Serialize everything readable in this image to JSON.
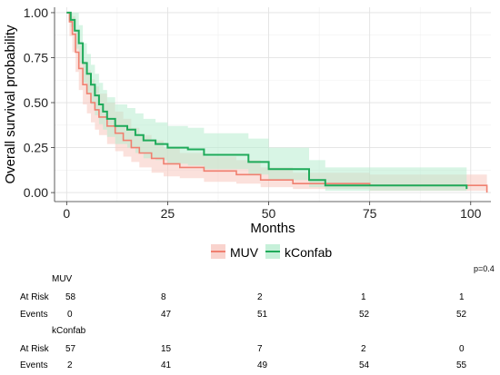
{
  "chart_data": {
    "type": "line",
    "subtype": "kaplan-meier",
    "xlabel": "Months",
    "ylabel": "Overall survival probability",
    "xlim": [
      -3,
      105
    ],
    "ylim": [
      -0.05,
      1.03
    ],
    "xticks": [
      0,
      25,
      50,
      75,
      100
    ],
    "yticks": [
      0.0,
      0.25,
      0.5,
      0.75,
      1.0
    ],
    "ytick_labels": [
      "0.00",
      "0.25",
      "0.50",
      "0.75",
      "1.00"
    ],
    "grid": true,
    "legend_position": "bottom",
    "pvalue_label": "p=0.4",
    "series": [
      {
        "name": "MUV",
        "color": "#f08070",
        "fill": "#f8c8c0",
        "steps": [
          [
            0,
            1.0
          ],
          [
            0.7,
            0.95
          ],
          [
            1.4,
            0.88
          ],
          [
            2.2,
            0.78
          ],
          [
            3,
            0.69
          ],
          [
            4,
            0.6
          ],
          [
            5,
            0.55
          ],
          [
            6,
            0.5
          ],
          [
            7,
            0.46
          ],
          [
            8,
            0.42
          ],
          [
            10,
            0.37
          ],
          [
            12,
            0.33
          ],
          [
            14,
            0.29
          ],
          [
            16,
            0.25
          ],
          [
            18,
            0.22
          ],
          [
            21,
            0.19
          ],
          [
            24,
            0.16
          ],
          [
            28,
            0.14
          ],
          [
            34,
            0.12
          ],
          [
            42,
            0.1
          ],
          [
            48,
            0.07
          ],
          [
            56,
            0.05
          ],
          [
            75,
            0.04
          ],
          [
            98,
            0.04
          ],
          [
            104,
            0.0
          ]
        ],
        "upper": [
          [
            0,
            1.0
          ],
          [
            0.7,
            1.0
          ],
          [
            1.4,
            0.98
          ],
          [
            2.2,
            0.9
          ],
          [
            3,
            0.82
          ],
          [
            4,
            0.73
          ],
          [
            5,
            0.68
          ],
          [
            6,
            0.63
          ],
          [
            7,
            0.59
          ],
          [
            8,
            0.55
          ],
          [
            10,
            0.5
          ],
          [
            12,
            0.45
          ],
          [
            14,
            0.41
          ],
          [
            16,
            0.36
          ],
          [
            18,
            0.32
          ],
          [
            21,
            0.29
          ],
          [
            24,
            0.25
          ],
          [
            28,
            0.22
          ],
          [
            34,
            0.2
          ],
          [
            42,
            0.18
          ],
          [
            48,
            0.14
          ],
          [
            56,
            0.11
          ],
          [
            75,
            0.1
          ],
          [
            98,
            0.1
          ],
          [
            104,
            0.0
          ]
        ],
        "lower": [
          [
            0,
            1.0
          ],
          [
            0.7,
            0.87
          ],
          [
            1.4,
            0.78
          ],
          [
            2.2,
            0.67
          ],
          [
            3,
            0.57
          ],
          [
            4,
            0.49
          ],
          [
            5,
            0.44
          ],
          [
            6,
            0.39
          ],
          [
            7,
            0.35
          ],
          [
            8,
            0.32
          ],
          [
            10,
            0.27
          ],
          [
            12,
            0.23
          ],
          [
            14,
            0.2
          ],
          [
            16,
            0.17
          ],
          [
            18,
            0.14
          ],
          [
            21,
            0.11
          ],
          [
            24,
            0.09
          ],
          [
            28,
            0.08
          ],
          [
            34,
            0.06
          ],
          [
            42,
            0.05
          ],
          [
            48,
            0.03
          ],
          [
            56,
            0.02
          ],
          [
            75,
            0.01
          ],
          [
            98,
            0.01
          ],
          [
            104,
            0.0
          ]
        ]
      },
      {
        "name": "kConfab",
        "color": "#1faa5a",
        "fill": "#b8ecd0",
        "steps": [
          [
            0,
            1.0
          ],
          [
            1,
            0.96
          ],
          [
            2,
            0.9
          ],
          [
            3,
            0.83
          ],
          [
            4,
            0.72
          ],
          [
            5,
            0.66
          ],
          [
            6,
            0.6
          ],
          [
            7,
            0.54
          ],
          [
            8,
            0.49
          ],
          [
            9,
            0.45
          ],
          [
            10,
            0.41
          ],
          [
            12,
            0.37
          ],
          [
            15,
            0.35
          ],
          [
            17,
            0.32
          ],
          [
            19,
            0.29
          ],
          [
            22,
            0.27
          ],
          [
            25,
            0.25
          ],
          [
            30,
            0.24
          ],
          [
            34,
            0.21
          ],
          [
            45,
            0.17
          ],
          [
            50,
            0.13
          ],
          [
            60,
            0.07
          ],
          [
            64,
            0.04
          ],
          [
            99,
            0.02
          ]
        ],
        "upper": [
          [
            0,
            1.0
          ],
          [
            1,
            1.0
          ],
          [
            2,
            1.0
          ],
          [
            3,
            0.93
          ],
          [
            4,
            0.83
          ],
          [
            5,
            0.77
          ],
          [
            6,
            0.71
          ],
          [
            7,
            0.66
          ],
          [
            8,
            0.61
          ],
          [
            9,
            0.57
          ],
          [
            10,
            0.53
          ],
          [
            12,
            0.49
          ],
          [
            15,
            0.47
          ],
          [
            17,
            0.44
          ],
          [
            19,
            0.41
          ],
          [
            22,
            0.39
          ],
          [
            25,
            0.37
          ],
          [
            30,
            0.36
          ],
          [
            34,
            0.33
          ],
          [
            45,
            0.3
          ],
          [
            50,
            0.25
          ],
          [
            60,
            0.18
          ],
          [
            64,
            0.14
          ],
          [
            99,
            0.0
          ]
        ],
        "lower": [
          [
            0,
            1.0
          ],
          [
            1,
            0.92
          ],
          [
            2,
            0.8
          ],
          [
            3,
            0.72
          ],
          [
            4,
            0.61
          ],
          [
            5,
            0.55
          ],
          [
            6,
            0.49
          ],
          [
            7,
            0.43
          ],
          [
            8,
            0.38
          ],
          [
            9,
            0.35
          ],
          [
            10,
            0.31
          ],
          [
            12,
            0.27
          ],
          [
            15,
            0.25
          ],
          [
            17,
            0.22
          ],
          [
            19,
            0.19
          ],
          [
            22,
            0.18
          ],
          [
            25,
            0.16
          ],
          [
            30,
            0.15
          ],
          [
            34,
            0.13
          ],
          [
            45,
            0.1
          ],
          [
            50,
            0.07
          ],
          [
            60,
            0.03
          ],
          [
            64,
            0.01
          ],
          [
            99,
            0.0
          ]
        ]
      }
    ]
  },
  "risk_table": {
    "groups": [
      {
        "name": "MUV",
        "rows": [
          {
            "label": "At Risk",
            "values": [
              "58",
              "8",
              "2",
              "1",
              "1"
            ]
          },
          {
            "label": "Events",
            "values": [
              "0",
              "47",
              "51",
              "52",
              "52"
            ]
          }
        ]
      },
      {
        "name": "kConfab",
        "rows": [
          {
            "label": "At Risk",
            "values": [
              "57",
              "15",
              "7",
              "2",
              "0"
            ]
          },
          {
            "label": "Events",
            "values": [
              "2",
              "41",
              "49",
              "54",
              "55"
            ]
          }
        ]
      }
    ]
  }
}
